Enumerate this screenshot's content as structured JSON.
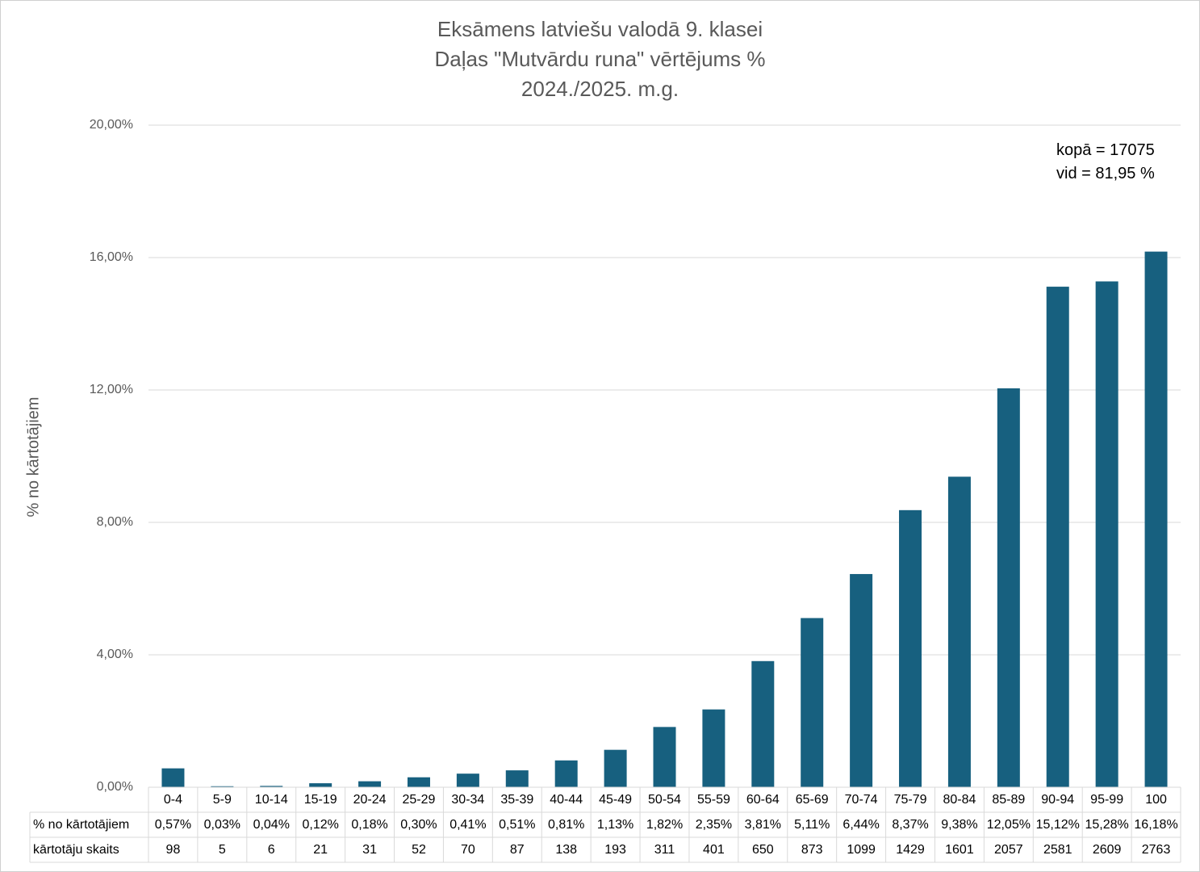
{
  "chart_data": {
    "type": "bar",
    "title_lines": [
      "Eksāmens latviešu valodā 9. klasei",
      "Daļas \"Mutvārdu runa\" vērtējums %",
      "2024./2025. m.g."
    ],
    "ylabel": "% no kārtotājiem",
    "ylim": [
      0,
      20
    ],
    "yticks": [
      "0,00%",
      "4,00%",
      "8,00%",
      "12,00%",
      "16,00%",
      "20,00%"
    ],
    "grid": true,
    "bar_color": "#17607F",
    "annotations": [
      "kopā = 17075",
      "vid = 81,95 %"
    ],
    "categories": [
      "0-4",
      "5-9",
      "10-14",
      "15-19",
      "20-24",
      "25-29",
      "30-34",
      "35-39",
      "40-44",
      "45-49",
      "50-54",
      "55-59",
      "60-64",
      "65-69",
      "70-74",
      "75-79",
      "80-84",
      "85-89",
      "90-94",
      "95-99",
      "100"
    ],
    "values": [
      0.57,
      0.03,
      0.04,
      0.12,
      0.18,
      0.3,
      0.41,
      0.51,
      0.81,
      1.13,
      1.82,
      2.35,
      3.81,
      5.11,
      6.44,
      8.37,
      9.38,
      12.05,
      15.12,
      15.28,
      16.18
    ],
    "table": {
      "rows": [
        {
          "label": "% no kārtotājiem",
          "cells": [
            "0,57%",
            "0,03%",
            "0,04%",
            "0,12%",
            "0,18%",
            "0,30%",
            "0,41%",
            "0,51%",
            "0,81%",
            "1,13%",
            "1,82%",
            "2,35%",
            "3,81%",
            "5,11%",
            "6,44%",
            "8,37%",
            "9,38%",
            "12,05%",
            "15,12%",
            "15,28%",
            "16,18%"
          ]
        },
        {
          "label": "kārtotāju skaits",
          "cells": [
            "98",
            "5",
            "6",
            "21",
            "31",
            "52",
            "70",
            "87",
            "138",
            "193",
            "311",
            "401",
            "650",
            "873",
            "1099",
            "1429",
            "1601",
            "2057",
            "2581",
            "2609",
            "2763"
          ]
        }
      ]
    }
  }
}
